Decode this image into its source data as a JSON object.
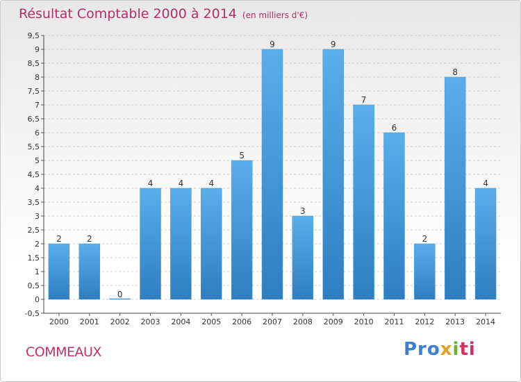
{
  "title": {
    "main": "Résultat Comptable 2000 à 2014",
    "subtitle": "(en milliers d'€)"
  },
  "commune": "COMMEAUX",
  "logo": {
    "p1": "Pro",
    "p2": "x",
    "p3": "i",
    "p4": "ti"
  },
  "colors": {
    "bar_top": "#5aaeea",
    "bar_bottom": "#2f7ec0",
    "title": "#b0306a",
    "grid": "#cfcfcf"
  },
  "chart_data": {
    "type": "bar",
    "title": "Résultat Comptable 2000 à 2014",
    "categories": [
      "2000",
      "2001",
      "2002",
      "2003",
      "2004",
      "2005",
      "2006",
      "2007",
      "2008",
      "2009",
      "2010",
      "2011",
      "2012",
      "2013",
      "2014"
    ],
    "values": [
      2,
      2,
      0,
      4,
      4,
      4,
      5,
      9,
      3,
      9,
      7,
      6,
      2,
      8,
      4
    ],
    "data_labels": [
      "2",
      "2",
      "0",
      "4",
      "4",
      "4",
      "5",
      "9",
      "3",
      "9",
      "7",
      "6",
      "2",
      "8",
      "4"
    ],
    "ylim": [
      -0.5,
      9.5
    ],
    "y_ticks": [
      "-0,5",
      "0",
      "0,5",
      "1",
      "1,5",
      "2",
      "2,5",
      "3",
      "3,5",
      "4",
      "4,5",
      "5",
      "5,5",
      "6",
      "6,5",
      "7",
      "7,5",
      "8",
      "8,5",
      "9",
      "9,5"
    ],
    "xlabel": "",
    "ylabel": "",
    "grid": true
  }
}
